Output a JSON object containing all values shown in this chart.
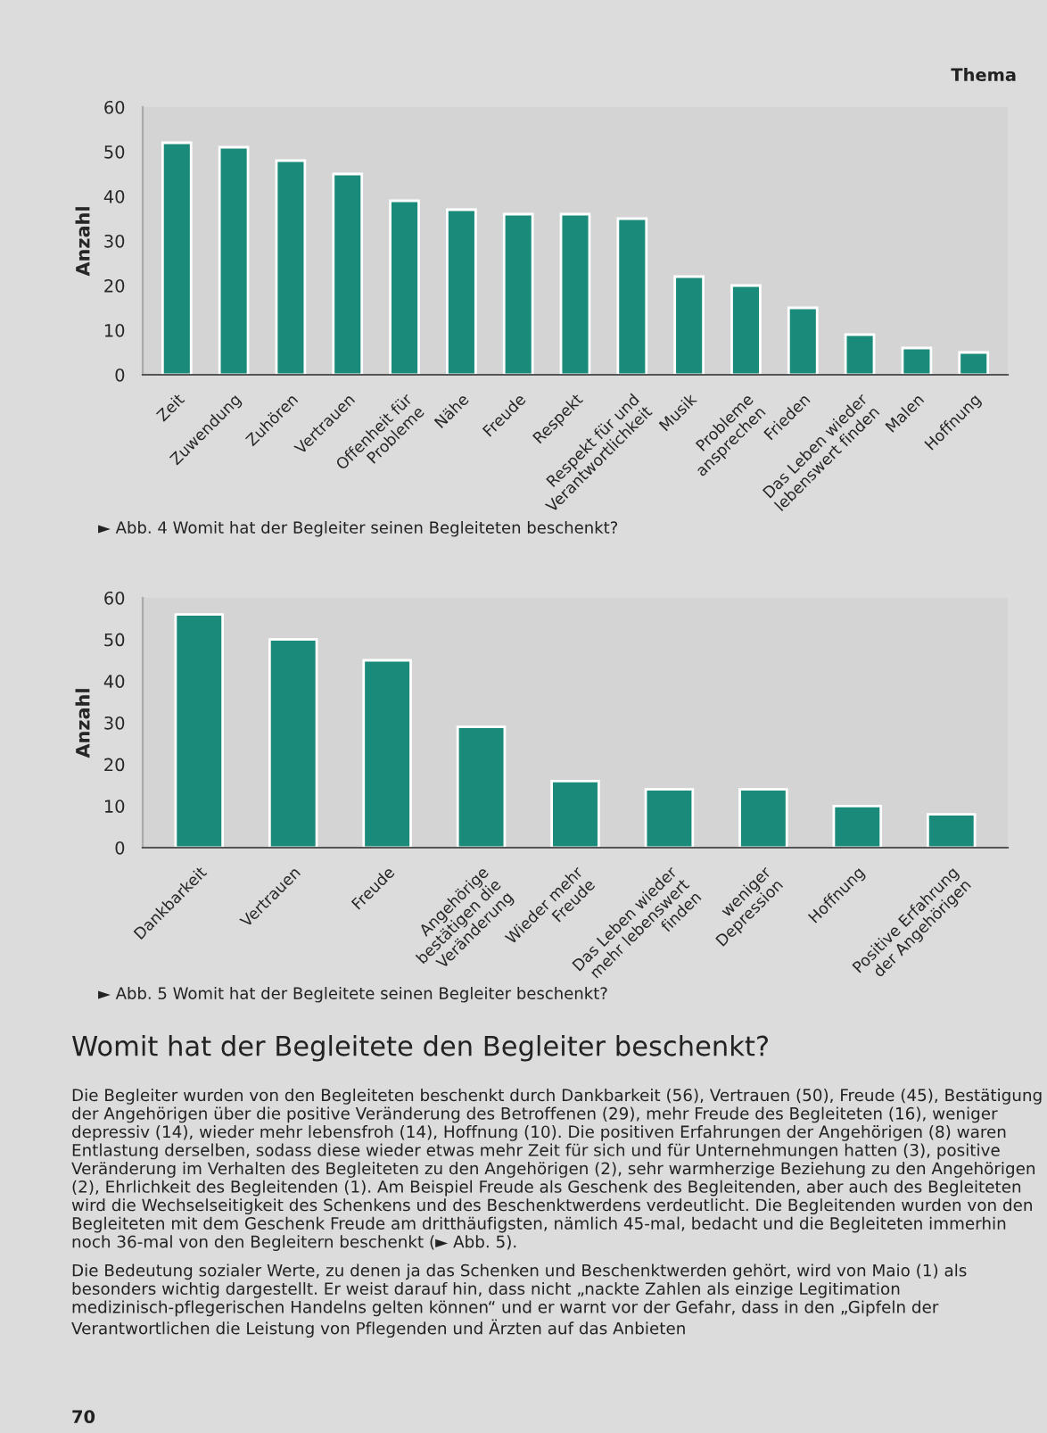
{
  "chart_data": [
    {
      "type": "bar",
      "ylabel": "Anzahl",
      "categories": [
        "Zeit",
        "Zuwendung",
        "Zuhören",
        "Vertrauen",
        "Offenheit für\nProbleme",
        "Nähe",
        "Freude",
        "Respekt",
        "Respekt für und\nVerantwortlichkeit",
        "Musik",
        "Probleme\nansprechen",
        "Frieden",
        "Das Leben wieder\nlebenswert finden",
        "Malen",
        "Hoffnung"
      ],
      "values": [
        52,
        51,
        48,
        45,
        39,
        37,
        36,
        36,
        35,
        22,
        20,
        15,
        9,
        6,
        5
      ],
      "color": "#1a8a7a",
      "ylim": [
        0,
        60
      ],
      "yticks": [
        0,
        10,
        20,
        30,
        40,
        50,
        60
      ],
      "grid": false,
      "annotations": [
        "Thema",
        "► Abb. 4 Womit hat der Begleiter seinen Begleiteten beschenkt?"
      ]
    },
    {
      "type": "bar",
      "ylabel": "Anzahl",
      "categories": [
        "Dankbarkeit",
        "Vertrauen",
        "Freude",
        "Angehörige\nbestätigen die\nVeränderung",
        "Wieder mehr\nFreude",
        "Das Leben wieder\nmehr lebenswert\nfinden",
        "weniger\nDepression",
        "Hoffnung",
        "Positive Erfahrung\nder Angehörigen"
      ],
      "values": [
        56,
        50,
        45,
        29,
        16,
        14,
        14,
        10,
        8
      ],
      "color": "#1a8a7a",
      "ylim": [
        0,
        60
      ],
      "yticks": [
        0,
        10,
        20,
        30,
        40,
        50,
        60
      ],
      "grid": false,
      "annotations": [
        "► Abb. 5 Womit hat der Begleitete seinen Begleiter beschenkt?",
        "Womit hat der Begleitete den Begleiter beschenkt?",
        "Die Begleiter wurden von den Begleiteten beschenkt durch Dankbarkeit (56), Vertrauen (50), Freude (45), Bestätigung der Angehörigen über die positive Veränderung des Betroffenen (29), mehr Freude des Begleiteten (16), weniger depressiv (14), wieder mehr lebensfroh (14), Hoffnung (10). Die positiven Erfahrungen der Angehörigen (8) waren Entlastung derselben, sodass diese wieder etwas mehr Zeit für sich und für Unternehmungen hatten (3), positive Veränderung im Verhalten des Begleiteten zu den Angehörigen (2), sehr warmherzige Beziehung zu den Angehörigen (2), Ehrlichkeit des Begleitenden (1). Am Beispiel Freude als Geschenk des Begleitenden, aber auch des Begleiteten wird die Wechselseitigkeit des Schenkens und des Beschenktwerdens verdeutlicht. Die Begleitenden wurden von den Begleiteten mit dem Geschenk Freude am dritthäufigsten, nämlich 45-mal, bedacht und die Begleiteten immerhin noch 36-mal von den Begleitern beschenkt (► Abb. 5).",
        "Die Bedeutung sozialer Werte, zu denen ja das Schenken und Beschenktwerden gehört, wird von Maio (1) als besonders wichtig dargestellt. Er weist darauf hin, dass nicht „nackte Zahlen als einzige Legitimation medizinisch-pflegerischen Handelns gelten können“ und er warnt vor der Gefahr, dass in den „Gipfeln der Verantwortlichen die Leistung von Pflegenden und Ärzten auf das Anbieten",
        "70"
      ]
    }
  ]
}
